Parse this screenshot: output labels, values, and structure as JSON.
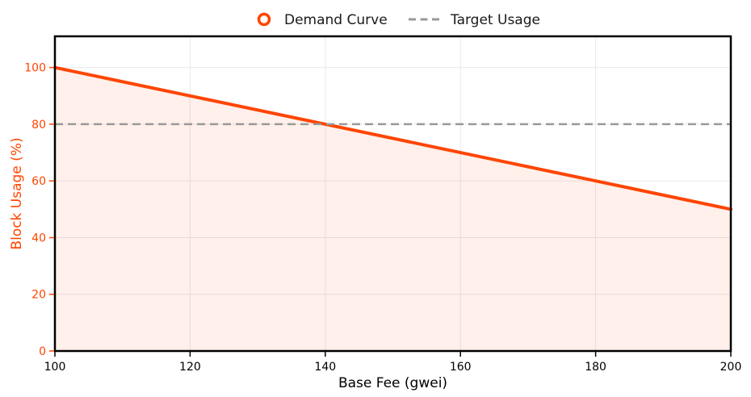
{
  "chart_data": {
    "type": "line",
    "title": "",
    "xlabel": "Base Fee (gwei)",
    "ylabel": "Block Usage (%)",
    "xlim": [
      100,
      200
    ],
    "ylim": [
      0,
      111
    ],
    "x_ticks": [
      100,
      120,
      140,
      160,
      180,
      200
    ],
    "y_ticks": [
      0,
      20,
      40,
      60,
      80,
      100
    ],
    "grid": true,
    "legend": {
      "position": "top-center",
      "frame": false,
      "entries": [
        "Demand Curve",
        "Target Usage"
      ]
    },
    "series": [
      {
        "name": "Demand Curve",
        "x": [
          100,
          120,
          140,
          160,
          180,
          200
        ],
        "y": [
          100,
          90,
          80,
          70,
          60,
          50
        ],
        "color": "#FF4500",
        "style": "solid",
        "line_width": 4,
        "legend_marker": "open-circle",
        "area_fill": true,
        "area_fill_opacity": 0.08
      },
      {
        "name": "Target Usage",
        "x": [
          100,
          200
        ],
        "y": [
          80,
          80
        ],
        "color": "#999999",
        "style": "dashed",
        "line_width": 2.5,
        "legend_marker": "dashed-line"
      }
    ],
    "colors": {
      "x_tick_label": "#000000",
      "y_tick_label": "#FF4500",
      "x_axis_label": "#000000",
      "y_axis_label": "#FF4500",
      "spine": "#000000",
      "grid": "#e8e8e8",
      "background": "#ffffff",
      "legend_text": "#1a1a1a"
    }
  }
}
